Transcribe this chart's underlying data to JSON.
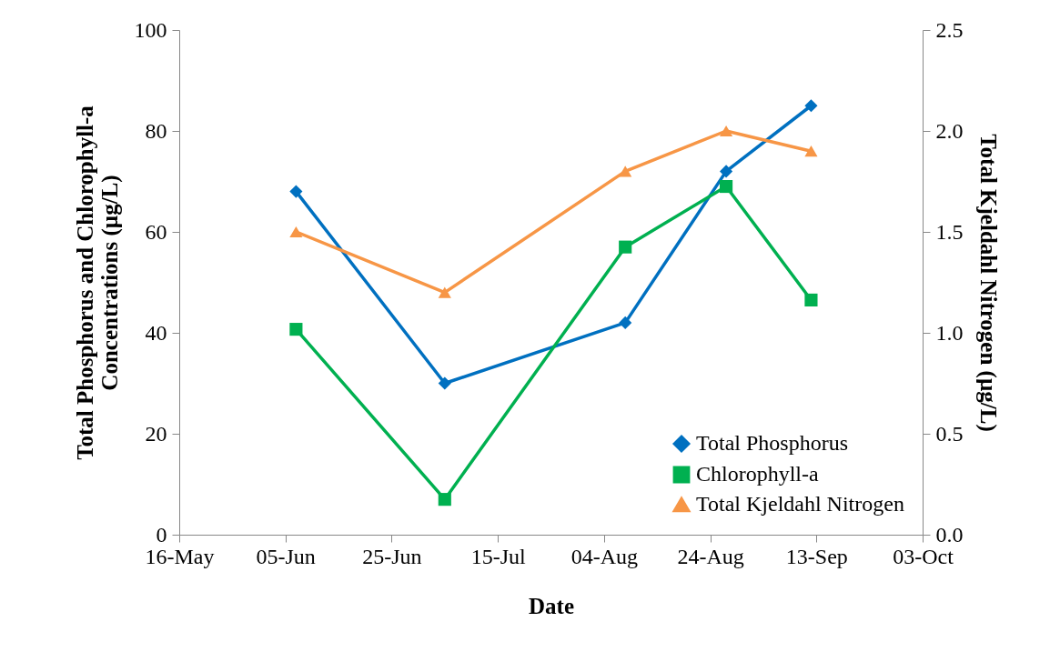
{
  "chart_data": {
    "type": "line",
    "xlabel": "Date",
    "ylabel": "Total Phosphorus and Chlorophyll-a Concentrations (µg/L)",
    "y2label": "Total Kjeldahl Nitrogen (µg/L)",
    "x": [
      "--06-07",
      "--07-05",
      "--08-08",
      "--08-27",
      "--09-12"
    ],
    "series": [
      {
        "name": "Total Phosphorus",
        "color": "#0070c0",
        "marker": "diamond",
        "values": [
          68,
          30,
          42,
          72,
          85
        ]
      },
      {
        "name": "Chlorophyll-a",
        "color": "#00b050",
        "marker": "square",
        "values": [
          40.7,
          7,
          57,
          69,
          46.5
        ]
      },
      {
        "name": "Total Kjeldahl Nitrogen",
        "color": "#f79646",
        "marker": "triangle",
        "axis": "y2",
        "values": [
          1.5,
          1.2,
          1.8,
          2.0,
          1.9
        ]
      }
    ],
    "xlim": [
      "--05-16",
      "--10-03"
    ],
    "xticks": [
      {
        "value": "--05-16",
        "label": "16-May"
      },
      {
        "value": "--06-05",
        "label": "05-Jun"
      },
      {
        "value": "--06-25",
        "label": "25-Jun"
      },
      {
        "value": "--07-15",
        "label": "15-Jul"
      },
      {
        "value": "--08-04",
        "label": "04-Aug"
      },
      {
        "value": "--08-24",
        "label": "24-Aug"
      },
      {
        "value": "--09-13",
        "label": "13-Sep"
      },
      {
        "value": "--10-03",
        "label": "03-Oct"
      }
    ],
    "ylim": [
      0,
      100
    ],
    "yticks": [
      0,
      20,
      40,
      60,
      80,
      100
    ],
    "y2lim": [
      0,
      2.5
    ],
    "y2ticks": [
      {
        "value": 0,
        "label": "0.0"
      },
      0.5,
      {
        "value": 1,
        "label": "1.0"
      },
      1.5,
      {
        "value": 2,
        "label": "2.0"
      },
      2.5
    ],
    "grid": false,
    "legend": "bottom right"
  }
}
